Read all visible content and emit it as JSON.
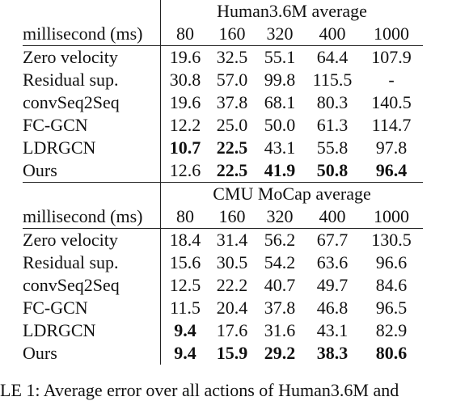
{
  "columns": [
    "80",
    "160",
    "320",
    "400",
    "1000"
  ],
  "header_label": "millisecond (ms)",
  "sections": [
    {
      "title": "Human3.6M average",
      "rows": [
        {
          "method": "Zero velocity",
          "values": [
            "19.6",
            "32.5",
            "55.1",
            "64.4",
            "107.9"
          ],
          "bold": [
            false,
            false,
            false,
            false,
            false
          ]
        },
        {
          "method": "Residual sup.",
          "values": [
            "30.8",
            "57.0",
            "99.8",
            "115.5",
            "-"
          ],
          "bold": [
            false,
            false,
            false,
            false,
            false
          ]
        },
        {
          "method": "convSeq2Seq",
          "values": [
            "19.6",
            "37.8",
            "68.1",
            "80.3",
            "140.5"
          ],
          "bold": [
            false,
            false,
            false,
            false,
            false
          ]
        },
        {
          "method": "FC-GCN",
          "values": [
            "12.2",
            "25.0",
            "50.0",
            "61.3",
            "114.7"
          ],
          "bold": [
            false,
            false,
            false,
            false,
            false
          ]
        },
        {
          "method": "LDRGCN",
          "values": [
            "10.7",
            "22.5",
            "43.1",
            "55.8",
            "97.8"
          ],
          "bold": [
            true,
            true,
            false,
            false,
            false
          ]
        },
        {
          "method": "Ours",
          "values": [
            "12.6",
            "22.5",
            "41.9",
            "50.8",
            "96.4"
          ],
          "bold": [
            false,
            true,
            true,
            true,
            true
          ]
        }
      ]
    },
    {
      "title": "CMU MoCap average",
      "rows": [
        {
          "method": "Zero velocity",
          "values": [
            "18.4",
            "31.4",
            "56.2",
            "67.7",
            "130.5"
          ],
          "bold": [
            false,
            false,
            false,
            false,
            false
          ]
        },
        {
          "method": "Residual sup.",
          "values": [
            "15.6",
            "30.5",
            "54.2",
            "63.6",
            "96.6"
          ],
          "bold": [
            false,
            false,
            false,
            false,
            false
          ]
        },
        {
          "method": "convSeq2Seq",
          "values": [
            "12.5",
            "22.2",
            "40.7",
            "49.7",
            "84.6"
          ],
          "bold": [
            false,
            false,
            false,
            false,
            false
          ]
        },
        {
          "method": "FC-GCN",
          "values": [
            "11.5",
            "20.4",
            "37.8",
            "46.8",
            "96.5"
          ],
          "bold": [
            false,
            false,
            false,
            false,
            false
          ]
        },
        {
          "method": "LDRGCN",
          "values": [
            "9.4",
            "17.6",
            "31.6",
            "43.1",
            "82.9"
          ],
          "bold": [
            true,
            false,
            false,
            false,
            false
          ]
        },
        {
          "method": "Ours",
          "values": [
            "9.4",
            "15.9",
            "29.2",
            "38.3",
            "80.6"
          ],
          "bold": [
            true,
            true,
            true,
            true,
            true
          ]
        }
      ]
    }
  ],
  "caption": "LE 1: Average error over all actions of Human3.6M and"
}
